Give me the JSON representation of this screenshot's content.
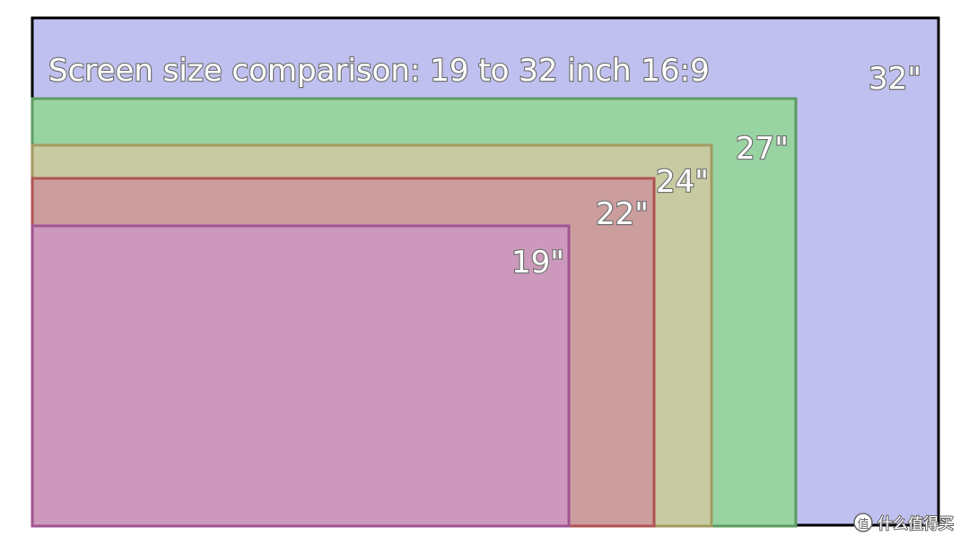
{
  "title": "Screen size comparison: 19 to 32 inch 16:9",
  "screens": [
    {
      "label": "32\""
    },
    {
      "label": "27\""
    },
    {
      "label": "24\""
    },
    {
      "label": "22\""
    },
    {
      "label": "19\""
    }
  ],
  "watermark": {
    "icon": "值",
    "text": "什么值得买"
  }
}
